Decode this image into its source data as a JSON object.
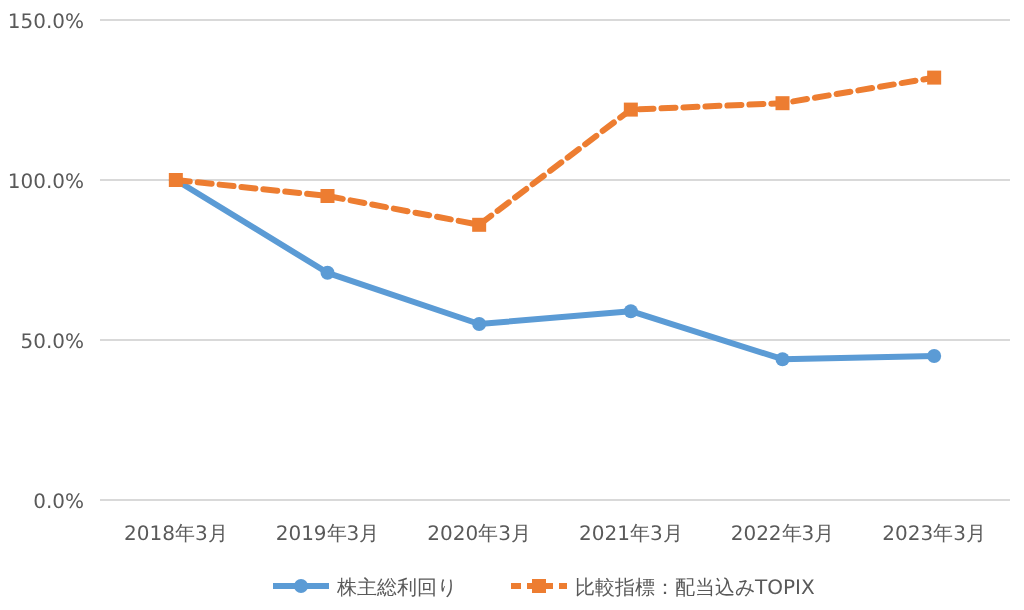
{
  "chart_data": {
    "type": "line",
    "categories": [
      "2018年3月",
      "2019年3月",
      "2020年3月",
      "2021年3月",
      "2022年3月",
      "2023年3月"
    ],
    "series": [
      {
        "name": "株主総利回り",
        "color": "#5b9bd5",
        "values": [
          100,
          71,
          55,
          59,
          44,
          45
        ],
        "marker": "circle",
        "line_style": "solid"
      },
      {
        "name": "比較指標：配当込みTOPIX",
        "color": "#ed7d31",
        "values": [
          100,
          95,
          86,
          122,
          124,
          132
        ],
        "marker": "square",
        "line_style": "dashed"
      }
    ],
    "ylim": [
      0,
      150
    ],
    "yticks": [
      {
        "value": 0,
        "label": "0.0%"
      },
      {
        "value": 50,
        "label": "50.0%"
      },
      {
        "value": 100,
        "label": "100.0%"
      },
      {
        "value": 150,
        "label": "150.0%"
      }
    ],
    "grid": "y",
    "legend": "bottom"
  }
}
